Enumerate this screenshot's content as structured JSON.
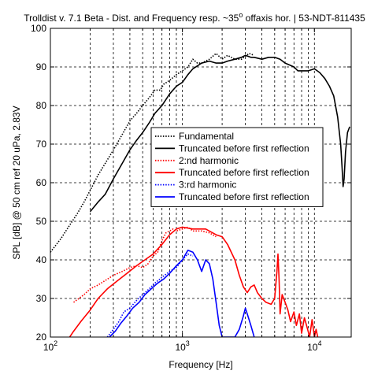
{
  "chart_data": {
    "type": "line",
    "title": "Trolldist v. 7.1 Beta - Dist. and Frequency resp. ~35° offaxis hor. | 53-NDT-811435",
    "title_parts": {
      "before_sup": "Trolldist v. 7.1 Beta - Dist. and Frequency resp. ~35",
      "sup": "o",
      "after_sup": " offaxis hor. | 53-NDT-811435"
    },
    "xlabel": "Frequency [Hz]",
    "ylabel": "SPL [dB] @ 50 cm ref 20 uPa, 2.83V",
    "xscale": "log",
    "xlim": [
      100,
      19000
    ],
    "ylim": [
      20,
      100
    ],
    "xticks": [
      {
        "value": 100,
        "base": "10",
        "exp": "2"
      },
      {
        "value": 1000,
        "base": "10",
        "exp": "3"
      },
      {
        "value": 10000,
        "base": "10",
        "exp": "4"
      }
    ],
    "yticks": [
      "20",
      "30",
      "40",
      "50",
      "60",
      "70",
      "80",
      "90",
      "100"
    ],
    "grid": true,
    "grid_style": "dashed",
    "legend_position": "center-right",
    "series": [
      {
        "name": "Fundamental",
        "color": "#000000",
        "style": "dotted",
        "points": [
          [
            100,
            42
          ],
          [
            120,
            45.5
          ],
          [
            140,
            49
          ],
          [
            160,
            52
          ],
          [
            180,
            55
          ],
          [
            200,
            58
          ],
          [
            230,
            62
          ],
          [
            260,
            65
          ],
          [
            300,
            68.5
          ],
          [
            350,
            72.5
          ],
          [
            400,
            76
          ],
          [
            450,
            78
          ],
          [
            500,
            80
          ],
          [
            560,
            82
          ],
          [
            620,
            84
          ],
          [
            680,
            84
          ],
          [
            720,
            85.5
          ],
          [
            800,
            86.5
          ],
          [
            900,
            88
          ],
          [
            1000,
            89
          ],
          [
            1100,
            90
          ],
          [
            1200,
            92
          ],
          [
            1300,
            91
          ],
          [
            1400,
            91
          ],
          [
            1600,
            92
          ],
          [
            1800,
            93.5
          ],
          [
            2000,
            92
          ],
          [
            2200,
            93
          ],
          [
            2500,
            92
          ],
          [
            2800,
            92
          ],
          [
            3200,
            93.5
          ],
          [
            3500,
            93
          ]
        ]
      },
      {
        "name": "Truncated before first reflection",
        "color": "#000000",
        "style": "solid",
        "points": [
          [
            200,
            52.5
          ],
          [
            230,
            55
          ],
          [
            260,
            57
          ],
          [
            300,
            61
          ],
          [
            350,
            65
          ],
          [
            400,
            68.5
          ],
          [
            450,
            71
          ],
          [
            500,
            73
          ],
          [
            560,
            75.5
          ],
          [
            620,
            78
          ],
          [
            700,
            80
          ],
          [
            800,
            83
          ],
          [
            900,
            85
          ],
          [
            1000,
            86
          ],
          [
            1100,
            88
          ],
          [
            1200,
            89.5
          ],
          [
            1400,
            91
          ],
          [
            1600,
            91.5
          ],
          [
            1800,
            91
          ],
          [
            2000,
            91
          ],
          [
            2200,
            91.5
          ],
          [
            2500,
            92
          ],
          [
            2800,
            92.5
          ],
          [
            3000,
            93
          ],
          [
            3300,
            92.5
          ],
          [
            3500,
            92.5
          ],
          [
            4000,
            92
          ],
          [
            4500,
            92.5
          ],
          [
            5000,
            92.5
          ],
          [
            5500,
            92
          ],
          [
            6000,
            91
          ],
          [
            6500,
            90.5
          ],
          [
            7000,
            90
          ],
          [
            7500,
            89
          ],
          [
            8000,
            89
          ],
          [
            9000,
            89
          ],
          [
            10000,
            89.5
          ],
          [
            10500,
            89
          ],
          [
            11000,
            88.5
          ],
          [
            12000,
            87
          ],
          [
            13000,
            85
          ],
          [
            14000,
            82.5
          ],
          [
            15000,
            77
          ],
          [
            15800,
            70
          ],
          [
            16200,
            64
          ],
          [
            16500,
            59
          ],
          [
            16800,
            61
          ],
          [
            17200,
            68
          ],
          [
            17800,
            73
          ],
          [
            18500,
            74.5
          ]
        ]
      },
      {
        "name": "2:nd harmonic",
        "color": "#ff0000",
        "style": "dotted",
        "points": [
          [
            150,
            29
          ],
          [
            180,
            31
          ],
          [
            200,
            32.5
          ],
          [
            230,
            33.5
          ],
          [
            270,
            35
          ],
          [
            300,
            36
          ],
          [
            350,
            37
          ],
          [
            400,
            38
          ],
          [
            450,
            38.5
          ],
          [
            500,
            38
          ],
          [
            550,
            39
          ],
          [
            600,
            41
          ],
          [
            650,
            42
          ],
          [
            700,
            45
          ],
          [
            750,
            47
          ],
          [
            800,
            47.5
          ],
          [
            850,
            48
          ],
          [
            900,
            47.5
          ],
          [
            1000,
            48
          ],
          [
            1100,
            48.5
          ],
          [
            1200,
            47.5
          ],
          [
            1400,
            47.5
          ],
          [
            1600,
            47
          ],
          [
            1800,
            46
          ]
        ]
      },
      {
        "name": "Truncated before first reflection",
        "color": "#ff0000",
        "style": "solid",
        "points": [
          [
            140,
            20
          ],
          [
            150,
            21.5
          ],
          [
            170,
            24
          ],
          [
            200,
            27
          ],
          [
            230,
            30
          ],
          [
            270,
            32.5
          ],
          [
            320,
            34.5
          ],
          [
            380,
            36.5
          ],
          [
            450,
            38.5
          ],
          [
            520,
            40
          ],
          [
            600,
            41.5
          ],
          [
            700,
            44
          ],
          [
            800,
            46.5
          ],
          [
            900,
            48
          ],
          [
            1000,
            48.5
          ],
          [
            1200,
            48
          ],
          [
            1500,
            48
          ],
          [
            1800,
            46.5
          ],
          [
            2000,
            46
          ],
          [
            2200,
            44
          ],
          [
            2500,
            40
          ],
          [
            2700,
            36
          ],
          [
            2900,
            33
          ],
          [
            3100,
            31.5
          ],
          [
            3300,
            33
          ],
          [
            3500,
            33.5
          ],
          [
            3700,
            31.5
          ],
          [
            4000,
            30
          ],
          [
            4300,
            29
          ],
          [
            4700,
            28.5
          ],
          [
            5000,
            30
          ],
          [
            5200,
            37
          ],
          [
            5300,
            41.5
          ],
          [
            5400,
            35
          ],
          [
            5500,
            26
          ],
          [
            5700,
            31
          ],
          [
            6000,
            29
          ],
          [
            6300,
            27
          ],
          [
            6600,
            24
          ],
          [
            7000,
            26.5
          ],
          [
            7300,
            23
          ],
          [
            7700,
            26
          ],
          [
            8000,
            21
          ],
          [
            8400,
            25
          ],
          [
            8800,
            22.5
          ],
          [
            9200,
            20
          ],
          [
            9600,
            24.5
          ],
          [
            10000,
            20
          ],
          [
            10300,
            22
          ],
          [
            10600,
            20
          ]
        ]
      },
      {
        "name": "3:rd harmonic",
        "color": "#0000ff",
        "style": "dotted",
        "points": [
          [
            270,
            20
          ],
          [
            300,
            22
          ],
          [
            330,
            24
          ],
          [
            360,
            26.5
          ],
          [
            400,
            27.5
          ],
          [
            450,
            29.5
          ],
          [
            500,
            31
          ],
          [
            560,
            32.5
          ],
          [
            620,
            34
          ],
          [
            700,
            35.5
          ],
          [
            800,
            37
          ],
          [
            900,
            38
          ],
          [
            1000,
            40
          ],
          [
            1100,
            41.5
          ],
          [
            1200,
            41
          ]
        ]
      },
      {
        "name": "Truncated before first reflection",
        "color": "#0000ff",
        "style": "solid",
        "points": [
          [
            280,
            20
          ],
          [
            310,
            21.5
          ],
          [
            340,
            23.5
          ],
          [
            380,
            25.5
          ],
          [
            420,
            27.5
          ],
          [
            470,
            29
          ],
          [
            520,
            31
          ],
          [
            580,
            32.5
          ],
          [
            650,
            34
          ],
          [
            720,
            35
          ],
          [
            800,
            36.5
          ],
          [
            900,
            38.5
          ],
          [
            1000,
            40
          ],
          [
            1100,
            42.5
          ],
          [
            1200,
            42
          ],
          [
            1300,
            40
          ],
          [
            1400,
            37
          ],
          [
            1500,
            40
          ],
          [
            1600,
            39
          ],
          [
            1700,
            35
          ],
          [
            1800,
            29
          ],
          [
            1900,
            23
          ],
          [
            2000,
            20
          ],
          [
            2500,
            20
          ],
          [
            2700,
            22
          ],
          [
            2900,
            25.5
          ],
          [
            3000,
            27.5
          ],
          [
            3100,
            26
          ],
          [
            3300,
            23
          ],
          [
            3500,
            20
          ]
        ]
      }
    ]
  }
}
